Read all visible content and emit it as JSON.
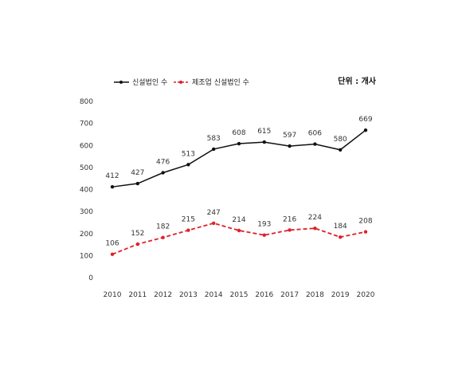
{
  "chart_data": {
    "type": "line",
    "title": "",
    "xlabel": "",
    "ylabel": "",
    "unit_label": "단위 : 개사",
    "legend_position": "top-left",
    "grid": false,
    "x": [
      "2010",
      "2011",
      "2012",
      "2013",
      "2014",
      "2015",
      "2016",
      "2017",
      "2018",
      "2019",
      "2020"
    ],
    "ylim": [
      0,
      800
    ],
    "yticks": [
      "0",
      "100",
      "200",
      "300",
      "400",
      "500",
      "600",
      "700",
      "800"
    ],
    "series": [
      {
        "name": "신설법인 수",
        "color": "#111111",
        "style": "solid",
        "values": [
          412,
          427,
          476,
          513,
          583,
          608,
          615,
          597,
          606,
          580,
          669
        ]
      },
      {
        "name": "제조업 신설법인 수",
        "color": "#e0202a",
        "style": "dashed",
        "values": [
          106,
          152,
          182,
          215,
          247,
          214,
          193,
          216,
          224,
          184,
          208
        ]
      }
    ]
  }
}
